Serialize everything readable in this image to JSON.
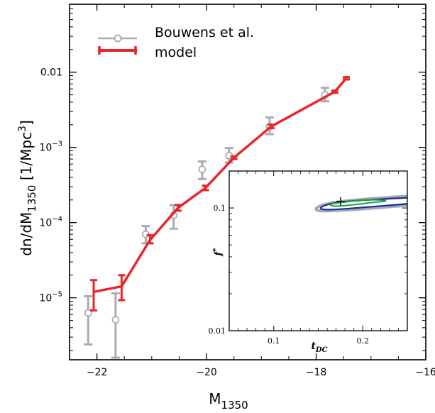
{
  "chart_data": [
    {
      "type": "line",
      "xlabel": {
        "base": "M",
        "sub": "1350"
      },
      "ylabel": {
        "pre": "dn/dM",
        "sub": "1350",
        "mid": " [1/Mpc",
        "sup": "3",
        "post": "]"
      },
      "xlim": [
        -22.5,
        -16
      ],
      "ylim": [
        1.5e-06,
        0.08
      ],
      "yscale": "log",
      "x_ticks": [
        -22,
        -20,
        -18,
        -16
      ],
      "x_tick_labels": [
        "−22",
        "−20",
        "−18",
        "−16"
      ],
      "y_ticks": [
        1e-05,
        0.0001,
        0.001,
        0.01
      ],
      "y_tick_labels": [
        {
          "base": "10",
          "sup": "−5"
        },
        {
          "base": "10",
          "sup": "−4"
        },
        {
          "base": "10",
          "sup": "−3"
        },
        {
          "base": "0.01",
          "sup": ""
        }
      ],
      "legend": {
        "position": "top-left",
        "entries": [
          "Bouwens et al.",
          "model"
        ]
      },
      "series": [
        {
          "name": "Bouwens et al.",
          "color": "#a9adb3",
          "marker": "open-circle",
          "points": [
            {
              "x": -22.16,
              "y": 6.3e-06,
              "lo": 2.4e-06,
              "hi": 1.05e-05
            },
            {
              "x": -21.66,
              "y": 5.1e-06,
              "lo": 1.6e-06,
              "hi": 1.15e-05
            },
            {
              "x": -21.11,
              "y": 7e-05,
              "lo": 5.3e-05,
              "hi": 9e-05
            },
            {
              "x": -20.6,
              "y": 0.000125,
              "lo": 8.3e-05,
              "hi": 0.00017
            },
            {
              "x": -20.08,
              "y": 0.00051,
              "lo": 0.00038,
              "hi": 0.00065
            },
            {
              "x": -19.59,
              "y": 0.00078,
              "lo": 0.00063,
              "hi": 0.00098
            },
            {
              "x": -18.85,
              "y": 0.0019,
              "lo": 0.0015,
              "hi": 0.0025
            },
            {
              "x": -17.84,
              "y": 0.005,
              "lo": 0.0041,
              "hi": 0.0062
            }
          ]
        },
        {
          "name": "model",
          "color": "#e8262b",
          "points": [
            {
              "x": -22.06,
              "y": 1.2e-05,
              "lo": 6.8e-06,
              "hi": 1.72e-05
            },
            {
              "x": -21.55,
              "y": 1.42e-05,
              "lo": 9.3e-06,
              "hi": 2e-05
            },
            {
              "x": -21.03,
              "y": 5.9e-05,
              "lo": 5.3e-05,
              "hi": 6.8e-05
            },
            {
              "x": -20.52,
              "y": 0.000157,
              "lo": 0.000144,
              "hi": 0.000172
            },
            {
              "x": -20.02,
              "y": 0.00029,
              "lo": 0.00027,
              "hi": 0.00031
            },
            {
              "x": -19.5,
              "y": 0.00073,
              "lo": 0.0007,
              "hi": 0.00076
            },
            {
              "x": -18.82,
              "y": 0.0019,
              "lo": 0.0018,
              "hi": 0.002
            },
            {
              "x": -17.66,
              "y": 0.0055,
              "lo": 0.0053,
              "hi": 0.0057
            },
            {
              "x": -17.45,
              "y": 0.0083,
              "lo": 0.008,
              "hi": 0.0086
            }
          ]
        }
      ]
    },
    {
      "type": "contour",
      "xlabel": {
        "base": "t",
        "sub": "DC"
      },
      "ylabel": {
        "base": "f",
        "sup": "*"
      },
      "xlim": [
        0.05,
        0.25
      ],
      "ylim": [
        0.01,
        0.2
      ],
      "yscale": "log",
      "x_ticks": [
        0.1,
        0.2
      ],
      "x_tick_labels": [
        "0.1",
        "0.2"
      ],
      "y_ticks": [
        0.01,
        0.1
      ],
      "y_tick_labels": [
        "0.01",
        "0.1"
      ],
      "best_fit": {
        "x": 0.175,
        "y": 0.113
      },
      "contours": [
        {
          "color": "#a2a8bd",
          "points": [
            [
              0.25,
              0.125
            ],
            [
              0.2,
              0.118
            ],
            [
              0.17,
              0.112
            ],
            [
              0.155,
              0.106
            ],
            [
              0.147,
              0.1
            ],
            [
              0.148,
              0.095
            ],
            [
              0.16,
              0.094
            ],
            [
              0.2,
              0.098
            ],
            [
              0.25,
              0.105
            ]
          ]
        },
        {
          "color": "#1c2a8a",
          "points": [
            [
              0.25,
              0.121
            ],
            [
              0.2,
              0.116
            ],
            [
              0.17,
              0.111
            ],
            [
              0.157,
              0.105
            ],
            [
              0.152,
              0.1
            ],
            [
              0.154,
              0.097
            ],
            [
              0.17,
              0.097
            ],
            [
              0.2,
              0.101
            ],
            [
              0.25,
              0.108
            ]
          ]
        },
        {
          "color": "#1aa344",
          "points": [
            [
              0.165,
              0.108
            ],
            [
              0.19,
              0.115
            ],
            [
              0.215,
              0.117
            ],
            [
              0.23,
              0.114
            ],
            [
              0.21,
              0.111
            ],
            [
              0.19,
              0.106
            ],
            [
              0.17,
              0.103
            ],
            [
              0.163,
              0.105
            ],
            [
              0.165,
              0.108
            ]
          ]
        }
      ]
    }
  ]
}
